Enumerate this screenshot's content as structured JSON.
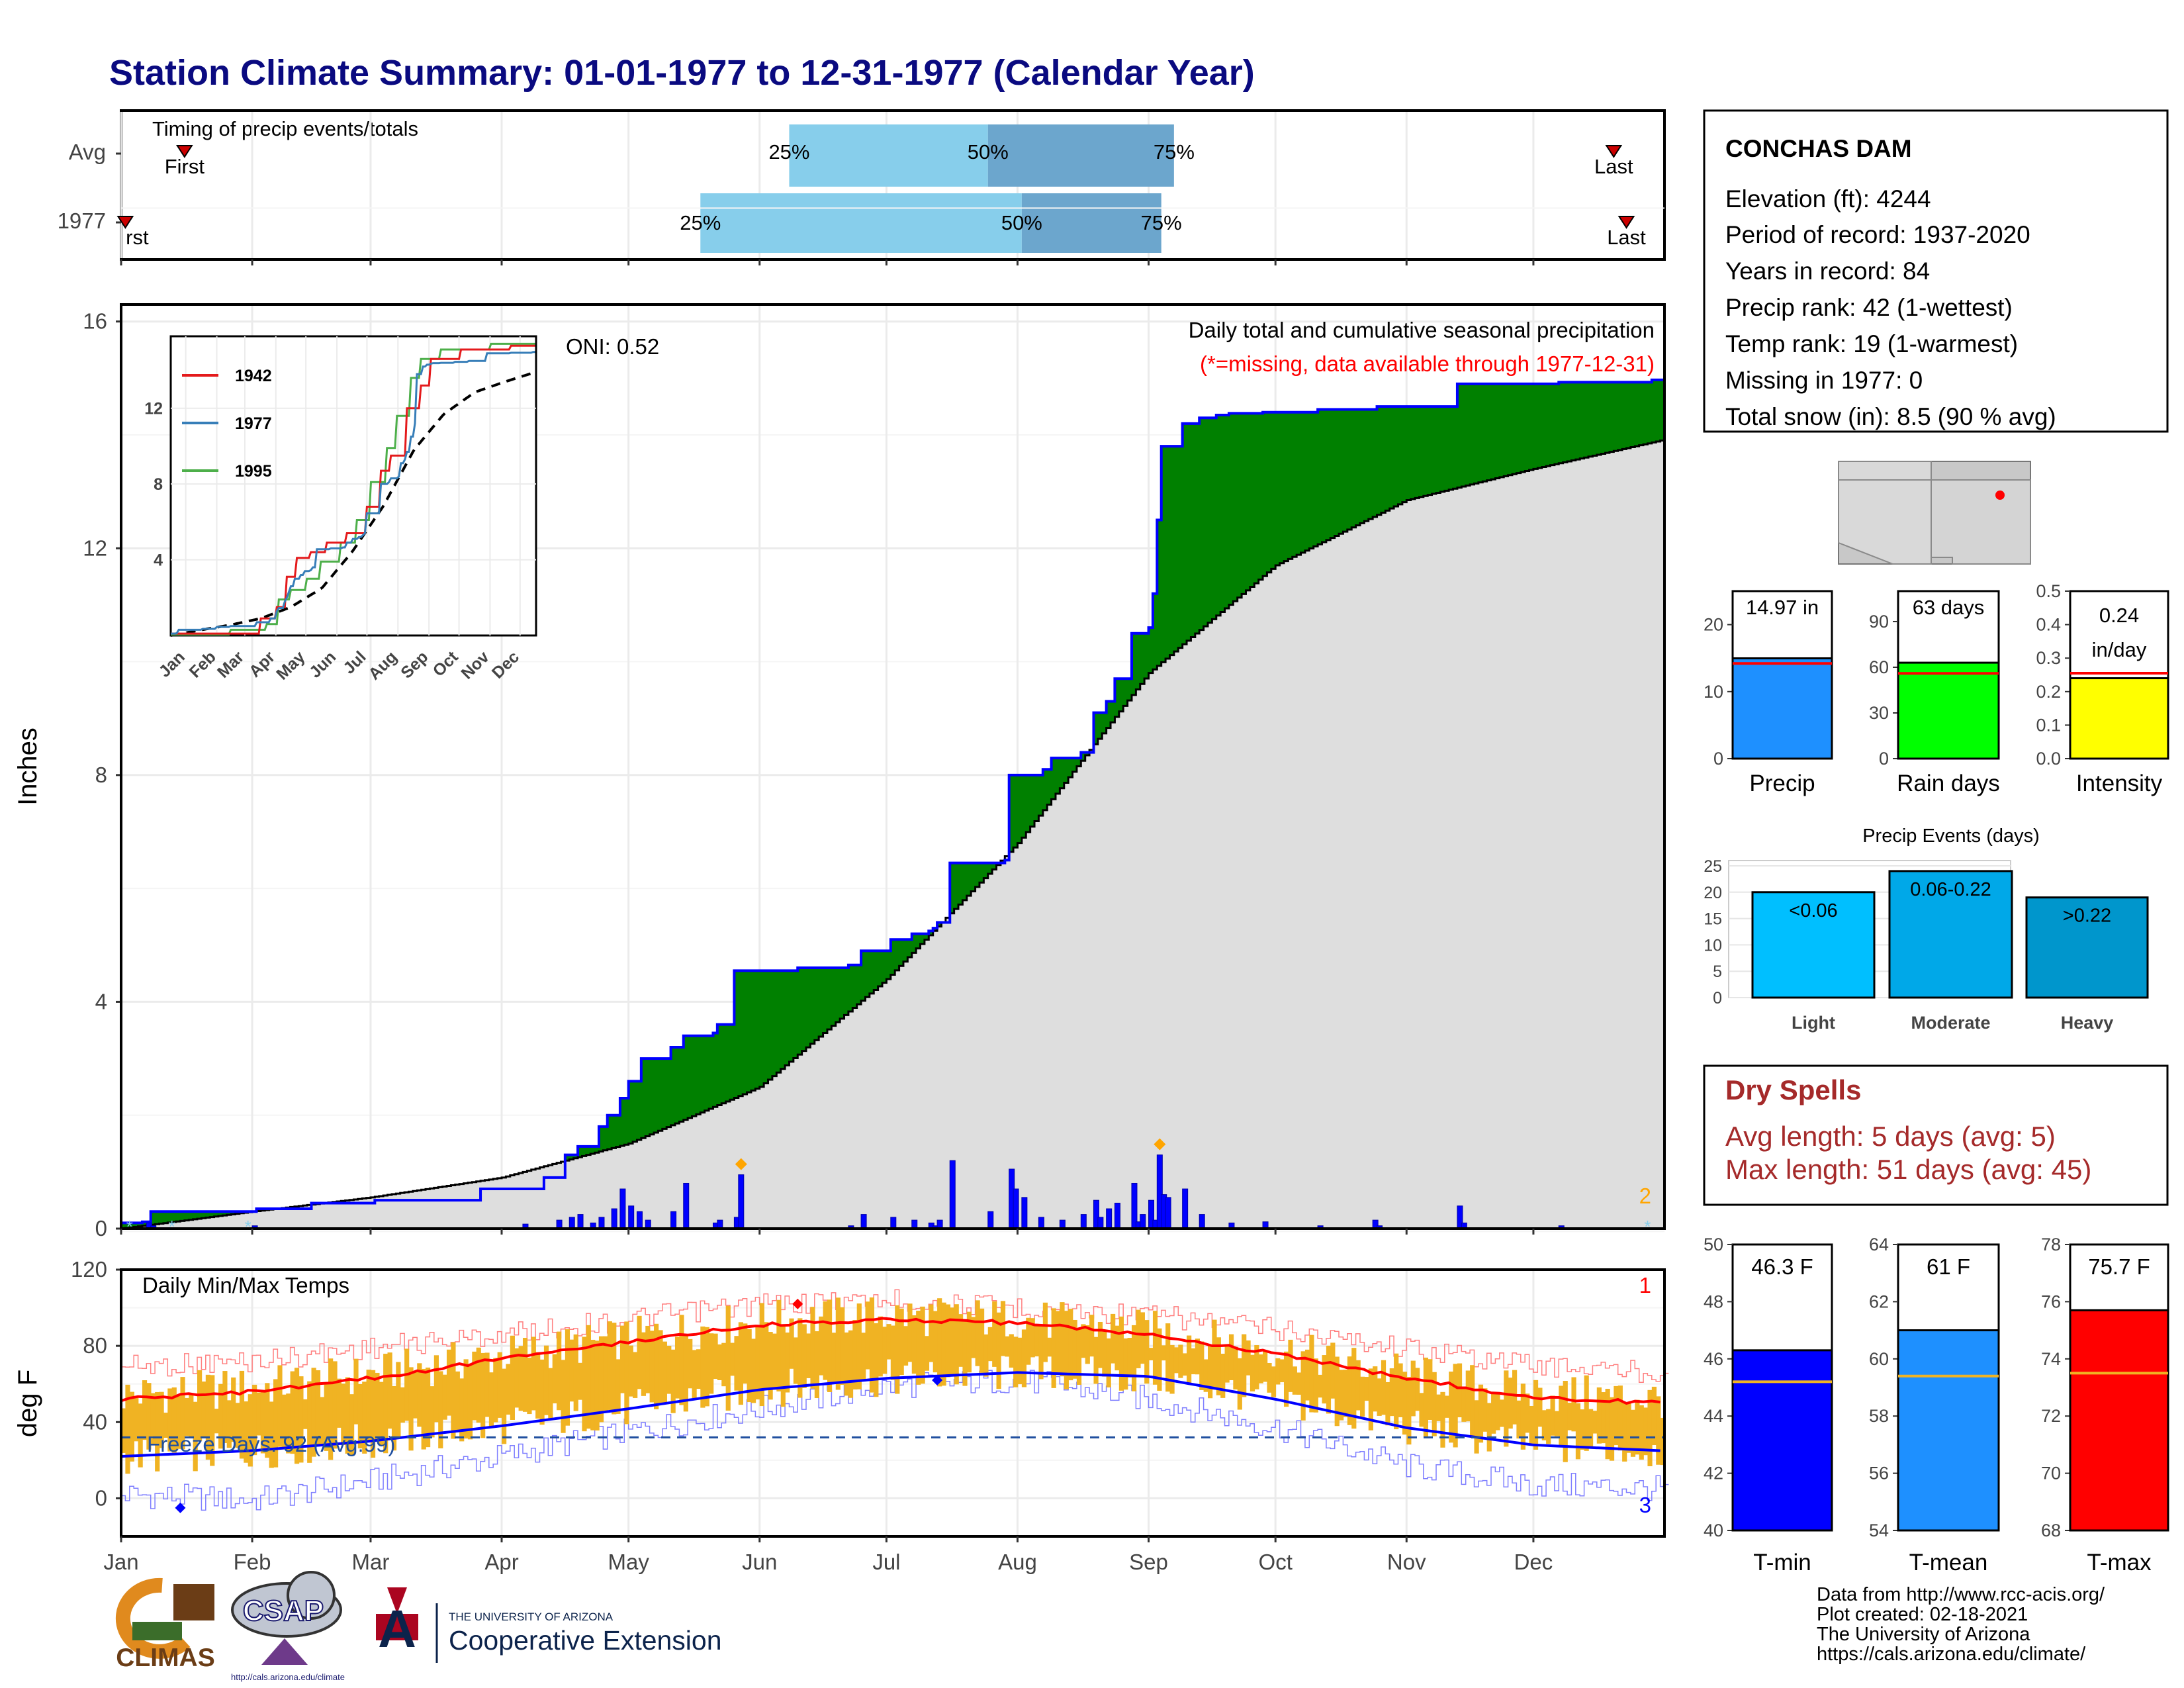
{
  "title": "Station Climate Summary: 01-01-1977 to 12-31-1977 (Calendar Year)",
  "colors": {
    "title": "#0a0a80",
    "cum_obs": "#0000ff",
    "cum_avg": "#000000",
    "above": "#008000",
    "below": "#7f4f00",
    "daily_bar": "#0000ff",
    "tmin": "#0000ff",
    "tmax": "#ff0000",
    "tmean": "#1e90ff",
    "tbar": "#f0b323",
    "dry": "#a52a2a",
    "light": "#00bfff",
    "moderate": "#00a8e8",
    "heavy": "#0096cc"
  },
  "timing": {
    "title": "Timing of precip events/totals",
    "rows": [
      "Avg",
      "1977"
    ],
    "first_label": "First",
    "last_label": "Last",
    "first_label_cut": "rst",
    "q25": "25%",
    "q50": "50%",
    "q75": "75%",
    "avg": {
      "first": 15,
      "q25": 158,
      "q50": 205,
      "q75": 249,
      "last": 353
    },
    "obs": {
      "first": 1,
      "q25": 137,
      "q50": 213,
      "q75": 246,
      "last": 356
    }
  },
  "month_labels": [
    "Jan",
    "Feb",
    "Mar",
    "Apr",
    "May",
    "Jun",
    "Jul",
    "Aug",
    "Sep",
    "Oct",
    "Nov",
    "Dec"
  ],
  "precip_panel": {
    "title": "Daily total and cumulative seasonal precipitation",
    "missing_note": "(*=missing, data available through 1977-12-31)",
    "oni": "ONI: 0.52",
    "ylabel": "Inches",
    "yticks": [
      "0",
      "4",
      "8",
      "12",
      "16"
    ],
    "corner_count": "2"
  },
  "inset": {
    "legend": [
      "1942",
      "1977",
      "1995"
    ],
    "legend_colors": [
      "#e41a1c",
      "#377eb8",
      "#4daf4a"
    ],
    "yticks": [
      "4",
      "8",
      "12"
    ],
    "xticks": [
      "Jan",
      "Feb",
      "Mar",
      "Apr",
      "May",
      "Jun",
      "Jul",
      "Aug",
      "Sep",
      "Oct",
      "Nov",
      "Dec"
    ]
  },
  "temp_panel": {
    "title": "Daily Min/Max Temps",
    "ylabel": "deg F",
    "yticks": [
      "0",
      "40",
      "80",
      "120"
    ],
    "freeze_label": "Freeze Days: 92 (Avg:99)",
    "record_high_count": "1",
    "record_low_count": "3"
  },
  "station": {
    "name": "CONCHAS DAM",
    "lines": [
      "Elevation (ft): 4244",
      "Period of record: 1937-2020",
      "Years in record: 84",
      "Precip rank: 42 (1-wettest)",
      "Temp rank: 19 (1-warmest)",
      "Missing in 1977: 0",
      "Total snow (in): 8.5 (90 % avg)"
    ]
  },
  "mini_bars": [
    {
      "label": "Precip",
      "value_text": "14.97 in",
      "value": 14.97,
      "avg": 14.2,
      "max": 25,
      "ticks": [
        "0",
        "10",
        "20"
      ],
      "color": "#1e90ff"
    },
    {
      "label": "Rain days",
      "value_text": "63 days",
      "value": 63,
      "avg": 56,
      "max": 110,
      "ticks": [
        "0",
        "30",
        "60",
        "90"
      ],
      "color": "#00ff00"
    },
    {
      "label": "Intensity",
      "value_text_1": "0.24",
      "value_text_2": "in/day",
      "value": 0.24,
      "avg": 0.255,
      "max": 0.5,
      "ticks": [
        "0.0",
        "0.1",
        "0.2",
        "0.3",
        "0.4",
        "0.5"
      ],
      "color": "#ffff00"
    }
  ],
  "events": {
    "title": "Precip Events (days)",
    "categories": [
      "Light",
      "Moderate",
      "Heavy"
    ],
    "labels": [
      "<0.06",
      "0.06-0.22",
      ">0.22"
    ],
    "values": [
      20,
      24,
      19
    ],
    "yticks": [
      "0",
      "5",
      "10",
      "15",
      "20",
      "25"
    ]
  },
  "dry": {
    "title": "Dry Spells",
    "avg_line": "Avg length: 5 days (avg: 5)",
    "max_line": "Max length: 51 days (avg: 45)"
  },
  "temp_bars": [
    {
      "label": "T-min",
      "value_text": "46.3 F",
      "value": 46.3,
      "avg": 45.2,
      "min": 40,
      "max": 50,
      "ticks": [
        "40",
        "42",
        "44",
        "46",
        "48",
        "50"
      ],
      "color": "#0000ff"
    },
    {
      "label": "T-mean",
      "value_text": "61 F",
      "value": 61,
      "avg": 59.4,
      "min": 54,
      "max": 64,
      "ticks": [
        "54",
        "56",
        "58",
        "60",
        "62",
        "64"
      ],
      "color": "#1e90ff"
    },
    {
      "label": "T-max",
      "value_text": "75.7 F",
      "value": 75.7,
      "avg": 73.5,
      "min": 68,
      "max": 78,
      "ticks": [
        "68",
        "70",
        "72",
        "74",
        "76",
        "78"
      ],
      "color": "#ff0000"
    }
  ],
  "footer": {
    "lines": [
      "Data from http://www.rcc-acis.org/",
      "Plot created: 02-18-2021",
      "The University of Arizona",
      "https://cals.arizona.edu/climate/"
    ],
    "climas": "CLIMAS",
    "csap": "CSAP",
    "csap_url": "http://cals.arizona.edu/climate",
    "ua_small": "THE UNIVERSITY OF ARIZONA",
    "ua_big": "Cooperative Extension"
  },
  "chart_data": [
    {
      "type": "area",
      "title": "Daily total and cumulative seasonal precipitation",
      "ylabel": "Inches",
      "ylim": [
        0,
        16.3
      ],
      "cumulative_observed": [
        [
          0,
          0.1
        ],
        [
          5,
          0.12
        ],
        [
          7,
          0.3
        ],
        [
          32,
          0.35
        ],
        [
          45,
          0.45
        ],
        [
          60,
          0.5
        ],
        [
          85,
          0.7
        ],
        [
          100,
          0.9
        ],
        [
          105,
          1.3
        ],
        [
          108,
          1.45
        ],
        [
          113,
          1.8
        ],
        [
          115,
          2.0
        ],
        [
          118,
          2.3
        ],
        [
          120,
          2.6
        ],
        [
          123,
          3.0
        ],
        [
          130,
          3.2
        ],
        [
          133,
          3.4
        ],
        [
          140,
          3.45
        ],
        [
          141,
          3.6
        ],
        [
          145,
          4.55
        ],
        [
          160,
          4.6
        ],
        [
          172,
          4.65
        ],
        [
          175,
          4.9
        ],
        [
          182,
          5.1
        ],
        [
          187,
          5.2
        ],
        [
          191,
          5.25
        ],
        [
          192,
          5.3
        ],
        [
          193,
          5.4
        ],
        [
          196,
          6.45
        ],
        [
          209,
          6.5
        ],
        [
          210,
          8.0
        ],
        [
          218,
          8.1
        ],
        [
          220,
          8.3
        ],
        [
          227,
          8.4
        ],
        [
          230,
          9.1
        ],
        [
          233,
          9.3
        ],
        [
          235,
          9.7
        ],
        [
          239,
          10.5
        ],
        [
          243,
          10.6
        ],
        [
          244,
          11.2
        ],
        [
          245,
          12.5
        ],
        [
          246,
          13.8
        ],
        [
          251,
          14.2
        ],
        [
          255,
          14.3
        ],
        [
          259,
          14.35
        ],
        [
          262,
          14.38
        ],
        [
          270,
          14.4
        ],
        [
          283,
          14.45
        ],
        [
          297,
          14.5
        ],
        [
          316,
          14.9
        ],
        [
          340,
          14.93
        ],
        [
          362,
          14.97
        ]
      ],
      "cumulative_average": [
        [
          0,
          0
        ],
        [
          31,
          0.3
        ],
        [
          59,
          0.55
        ],
        [
          90,
          0.9
        ],
        [
          120,
          1.5
        ],
        [
          151,
          2.5
        ],
        [
          181,
          4.4
        ],
        [
          212,
          6.8
        ],
        [
          243,
          9.8
        ],
        [
          273,
          11.7
        ],
        [
          304,
          12.85
        ],
        [
          334,
          13.4
        ],
        [
          364,
          13.9
        ]
      ],
      "daily_precip": [
        [
          6,
          0.1
        ],
        [
          7,
          0.05
        ],
        [
          31,
          0.05
        ],
        [
          95,
          0.08
        ],
        [
          103,
          0.15
        ],
        [
          106,
          0.2
        ],
        [
          108,
          0.25
        ],
        [
          111,
          0.1
        ],
        [
          113,
          0.2
        ],
        [
          116,
          0.35
        ],
        [
          118,
          0.7
        ],
        [
          120,
          0.4
        ],
        [
          122,
          0.3
        ],
        [
          124,
          0.15
        ],
        [
          130,
          0.3
        ],
        [
          133,
          0.8
        ],
        [
          140,
          0.1
        ],
        [
          141,
          0.15
        ],
        [
          145,
          0.2
        ],
        [
          146,
          0.95
        ],
        [
          172,
          0.05
        ],
        [
          175,
          0.25
        ],
        [
          182,
          0.2
        ],
        [
          187,
          0.15
        ],
        [
          191,
          0.1
        ],
        [
          192,
          0.05
        ],
        [
          193,
          0.15
        ],
        [
          196,
          1.2
        ],
        [
          205,
          0.3
        ],
        [
          210,
          1.05
        ],
        [
          211,
          0.7
        ],
        [
          213,
          0.55
        ],
        [
          217,
          0.2
        ],
        [
          222,
          0.15
        ],
        [
          227,
          0.25
        ],
        [
          230,
          0.5
        ],
        [
          231,
          0.2
        ],
        [
          233,
          0.35
        ],
        [
          235,
          0.45
        ],
        [
          239,
          0.8
        ],
        [
          240,
          0.12
        ],
        [
          241,
          0.25
        ],
        [
          243,
          0.5
        ],
        [
          244,
          0.15
        ],
        [
          245,
          1.3
        ],
        [
          246,
          0.6
        ],
        [
          247,
          0.55
        ],
        [
          251,
          0.7
        ],
        [
          255,
          0.25
        ],
        [
          262,
          0.1
        ],
        [
          270,
          0.12
        ],
        [
          283,
          0.05
        ],
        [
          296,
          0.15
        ],
        [
          297,
          0.05
        ],
        [
          316,
          0.4
        ],
        [
          317,
          0.1
        ],
        [
          340,
          0.05
        ]
      ],
      "oni": 0.52
    },
    {
      "type": "line",
      "title": "Daily Min/Max Temps",
      "ylabel": "deg F",
      "ylim": [
        -20,
        120
      ],
      "avg_max": [
        [
          0,
          52
        ],
        [
          31,
          56
        ],
        [
          59,
          63
        ],
        [
          90,
          73
        ],
        [
          120,
          82
        ],
        [
          151,
          91
        ],
        [
          181,
          94
        ],
        [
          212,
          92
        ],
        [
          243,
          86
        ],
        [
          273,
          76
        ],
        [
          304,
          63
        ],
        [
          334,
          53
        ],
        [
          364,
          50
        ]
      ],
      "avg_min": [
        [
          0,
          22
        ],
        [
          31,
          25
        ],
        [
          59,
          30
        ],
        [
          90,
          38
        ],
        [
          120,
          47
        ],
        [
          151,
          57
        ],
        [
          181,
          63
        ],
        [
          212,
          66
        ],
        [
          243,
          64
        ],
        [
          273,
          52
        ],
        [
          304,
          37
        ],
        [
          334,
          28
        ],
        [
          364,
          25
        ]
      ],
      "record_max": [
        [
          0,
          75
        ],
        [
          31,
          78
        ],
        [
          59,
          85
        ],
        [
          90,
          92
        ],
        [
          120,
          100
        ],
        [
          151,
          108
        ],
        [
          181,
          110
        ],
        [
          212,
          106
        ],
        [
          243,
          102
        ],
        [
          273,
          95
        ],
        [
          304,
          85
        ],
        [
          334,
          76
        ],
        [
          364,
          72
        ]
      ],
      "record_min": [
        [
          0,
          -5
        ],
        [
          31,
          -8
        ],
        [
          59,
          2
        ],
        [
          90,
          15
        ],
        [
          120,
          28
        ],
        [
          151,
          40
        ],
        [
          181,
          52
        ],
        [
          212,
          55
        ],
        [
          243,
          45
        ],
        [
          273,
          30
        ],
        [
          304,
          10
        ],
        [
          334,
          0
        ],
        [
          364,
          -2
        ]
      ],
      "freeze_line": 32
    }
  ]
}
